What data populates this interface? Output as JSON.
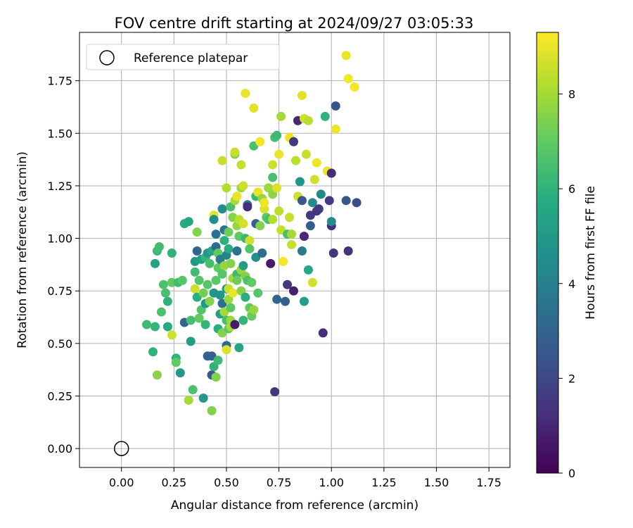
{
  "chart_data": {
    "type": "scatter",
    "title": "FOV centre drift starting at 2024/09/27 03:05:33",
    "xlabel": "Angular distance from reference (arcmin)",
    "ylabel": "Rotation from reference (arcmin)",
    "xlim": [
      -0.2,
      1.85
    ],
    "ylim": [
      -0.09,
      1.98
    ],
    "xticks": [
      "0.00",
      "0.25",
      "0.50",
      "0.75",
      "1.00",
      "1.25",
      "1.50",
      "1.75"
    ],
    "yticks": [
      "0.00",
      "0.25",
      "0.50",
      "0.75",
      "1.00",
      "1.25",
      "1.50",
      "1.75"
    ],
    "grid": true,
    "legend": {
      "placement": "top-left",
      "label": "Reference platepar"
    },
    "reference": {
      "x": 0.0,
      "y": 0.0
    },
    "colorbar": {
      "label": "Hours from first FF file",
      "range": [
        0,
        9.3
      ],
      "ticks": [
        "0",
        "2",
        "4",
        "6",
        "8"
      ],
      "colormap": [
        "#440154",
        "#472d7b",
        "#3b528b",
        "#2c728e",
        "#21918c",
        "#28ae80",
        "#5ec962",
        "#addc30",
        "#fde725"
      ]
    },
    "points": [
      [
        0.12,
        0.59,
        6.3
      ],
      [
        0.15,
        0.46,
        6.0
      ],
      [
        0.16,
        0.58,
        6.1
      ],
      [
        0.16,
        0.88,
        5.3
      ],
      [
        0.17,
        0.35,
        7.6
      ],
      [
        0.17,
        0.94,
        6.3
      ],
      [
        0.18,
        0.96,
        6.4
      ],
      [
        0.19,
        0.65,
        6.6
      ],
      [
        0.2,
        0.78,
        6.6
      ],
      [
        0.21,
        0.74,
        6.5
      ],
      [
        0.22,
        0.7,
        6.0
      ],
      [
        0.22,
        0.58,
        5.6
      ],
      [
        0.24,
        0.54,
        8.6
      ],
      [
        0.24,
        0.79,
        7.0
      ],
      [
        0.24,
        0.93,
        6.0
      ],
      [
        0.26,
        0.43,
        6.0
      ],
      [
        0.26,
        0.41,
        7.0
      ],
      [
        0.27,
        0.79,
        6.3
      ],
      [
        0.28,
        0.36,
        5.0
      ],
      [
        0.29,
        0.8,
        6.8
      ],
      [
        0.3,
        1.07,
        5.6
      ],
      [
        0.3,
        0.6,
        3.0
      ],
      [
        0.32,
        1.08,
        5.5
      ],
      [
        0.32,
        0.23,
        8.0
      ],
      [
        0.33,
        0.51,
        5.2
      ],
      [
        0.33,
        0.61,
        6.5
      ],
      [
        0.34,
        0.28,
        6.6
      ],
      [
        0.35,
        0.76,
        8.6
      ],
      [
        0.35,
        0.84,
        6.4
      ],
      [
        0.35,
        0.89,
        5.0
      ],
      [
        0.36,
        0.72,
        5.8
      ],
      [
        0.36,
        0.94,
        3.0
      ],
      [
        0.36,
        1.03,
        7.5
      ],
      [
        0.37,
        0.62,
        7.0
      ],
      [
        0.37,
        0.8,
        6.8
      ],
      [
        0.38,
        0.9,
        5.2
      ],
      [
        0.38,
        0.66,
        6.7
      ],
      [
        0.39,
        0.24,
        5.0
      ],
      [
        0.39,
        0.74,
        7.3
      ],
      [
        0.4,
        0.91,
        6.1
      ],
      [
        0.4,
        0.69,
        5.0
      ],
      [
        0.4,
        0.59,
        6.1
      ],
      [
        0.41,
        0.78,
        6.8
      ],
      [
        0.41,
        0.93,
        5.0
      ],
      [
        0.41,
        0.44,
        3.0
      ],
      [
        0.42,
        0.88,
        6.5
      ],
      [
        0.42,
        0.7,
        7.5
      ],
      [
        0.43,
        0.44,
        2.8
      ],
      [
        0.43,
        0.94,
        5.5
      ],
      [
        0.43,
        0.18,
        7.5
      ],
      [
        0.43,
        0.35,
        2.5
      ],
      [
        0.44,
        0.39,
        6.0
      ],
      [
        0.44,
        0.74,
        4.8
      ],
      [
        0.44,
        1.11,
        8.9
      ],
      [
        0.44,
        1.09,
        4.5
      ],
      [
        0.45,
        0.8,
        6.9
      ],
      [
        0.45,
        0.96,
        3.3
      ],
      [
        0.45,
        0.34,
        7.5
      ],
      [
        0.45,
        1.02,
        3.4
      ],
      [
        0.46,
        0.57,
        5.8
      ],
      [
        0.46,
        0.86,
        7.0
      ],
      [
        0.46,
        0.42,
        6.3
      ],
      [
        0.46,
        0.93,
        7.0
      ],
      [
        0.47,
        0.73,
        4.8
      ],
      [
        0.47,
        0.64,
        5.2
      ],
      [
        0.47,
        0.9,
        3.9
      ],
      [
        0.48,
        0.55,
        7.5
      ],
      [
        0.48,
        1.14,
        4.5
      ],
      [
        0.48,
        1.37,
        8.5
      ],
      [
        0.48,
        0.69,
        3.5
      ],
      [
        0.48,
        0.83,
        6.8
      ],
      [
        0.49,
        0.99,
        5.9
      ],
      [
        0.49,
        0.65,
        8.0
      ],
      [
        0.49,
        1.04,
        3.6
      ],
      [
        0.49,
        0.87,
        7.8
      ],
      [
        0.5,
        0.49,
        3.0
      ],
      [
        0.5,
        0.47,
        8.8
      ],
      [
        0.5,
        0.76,
        5.0
      ],
      [
        0.5,
        0.61,
        6.5
      ],
      [
        0.5,
        0.92,
        4.2
      ],
      [
        0.5,
        1.24,
        8.2
      ],
      [
        0.51,
        0.71,
        7.9
      ],
      [
        0.51,
        0.57,
        6.9
      ],
      [
        0.51,
        0.95,
        5.7
      ],
      [
        0.51,
        1.03,
        7.2
      ],
      [
        0.51,
        0.76,
        8.5
      ],
      [
        0.52,
        0.88,
        7.5
      ],
      [
        0.52,
        0.67,
        6.9
      ],
      [
        0.52,
        1.15,
        6.5
      ],
      [
        0.52,
        0.61,
        7.8
      ],
      [
        0.52,
        0.58,
        8.0
      ],
      [
        0.53,
        0.74,
        9.0
      ],
      [
        0.53,
        1.1,
        7.5
      ],
      [
        0.53,
        0.81,
        8.0
      ],
      [
        0.54,
        1.18,
        8.0
      ],
      [
        0.54,
        1.4,
        7.5
      ],
      [
        0.54,
        0.59,
        0.7
      ],
      [
        0.54,
        1.41,
        8.5
      ],
      [
        0.55,
        0.83,
        6.3
      ],
      [
        0.55,
        1.06,
        7.8
      ],
      [
        0.55,
        1.2,
        9.0
      ],
      [
        0.55,
        0.94,
        3.5
      ],
      [
        0.55,
        0.8,
        7.2
      ],
      [
        0.56,
        1.09,
        8.3
      ],
      [
        0.56,
        1.01,
        7.0
      ],
      [
        0.56,
        0.48,
        5.4
      ],
      [
        0.57,
        1.24,
        7.9
      ],
      [
        0.57,
        0.85,
        7.9
      ],
      [
        0.57,
        1.35,
        8.5
      ],
      [
        0.57,
        0.75,
        7.6
      ],
      [
        0.58,
        0.87,
        5.2
      ],
      [
        0.58,
        1.07,
        8.7
      ],
      [
        0.58,
        1.25,
        8.6
      ],
      [
        0.58,
        0.61,
        6.1
      ],
      [
        0.59,
        0.82,
        7.5
      ],
      [
        0.59,
        0.72,
        5.8
      ],
      [
        0.59,
        1.69,
        9.0
      ],
      [
        0.59,
        1.0,
        6.2
      ],
      [
        0.6,
        1.16,
        3.9
      ],
      [
        0.6,
        1.15,
        1.2
      ],
      [
        0.6,
        0.8,
        6.6
      ],
      [
        0.61,
        0.99,
        8.6
      ],
      [
        0.61,
        0.67,
        7.0
      ],
      [
        0.61,
        0.95,
        6.7
      ],
      [
        0.62,
        0.64,
        8.1
      ],
      [
        0.62,
        0.63,
        7.1
      ],
      [
        0.62,
        0.79,
        7.0
      ],
      [
        0.63,
        1.44,
        6.6
      ],
      [
        0.63,
        1.62,
        8.9
      ],
      [
        0.63,
        0.66,
        7.8
      ],
      [
        0.64,
        0.91,
        4.6
      ],
      [
        0.64,
        1.07,
        3.0
      ],
      [
        0.64,
        1.2,
        6.2
      ],
      [
        0.65,
        1.22,
        9.0
      ],
      [
        0.65,
        0.74,
        6.8
      ],
      [
        0.66,
        1.46,
        9.2
      ],
      [
        0.66,
        1.06,
        7.5
      ],
      [
        0.67,
        1.19,
        7.8
      ],
      [
        0.67,
        0.93,
        3.2
      ],
      [
        0.68,
        1.14,
        8.8
      ],
      [
        0.68,
        1.17,
        9.1
      ],
      [
        0.69,
        1.1,
        7.0
      ],
      [
        0.7,
        1.09,
        6.5
      ],
      [
        0.7,
        1.24,
        7.9
      ],
      [
        0.71,
        0.88,
        0.7
      ],
      [
        0.72,
        1.21,
        7.7
      ],
      [
        0.72,
        1.29,
        6.5
      ],
      [
        0.72,
        1.35,
        8.6
      ],
      [
        0.72,
        1.09,
        8.2
      ],
      [
        0.73,
        0.27,
        1.5
      ],
      [
        0.73,
        1.48,
        6.5
      ],
      [
        0.74,
        1.49,
        6.3
      ],
      [
        0.74,
        1.24,
        8.8
      ],
      [
        0.74,
        0.71,
        3.0
      ],
      [
        0.75,
        1.4,
        9.0
      ],
      [
        0.75,
        1.13,
        8.3
      ],
      [
        0.76,
        1.58,
        8.0
      ],
      [
        0.76,
        1.04,
        8.5
      ],
      [
        0.77,
        0.89,
        9.2
      ],
      [
        0.78,
        0.7,
        2.8
      ],
      [
        0.79,
        1.02,
        6.5
      ],
      [
        0.79,
        0.78,
        1.5
      ],
      [
        0.8,
        1.48,
        9.1
      ],
      [
        0.8,
        1.1,
        8.5
      ],
      [
        0.81,
        0.97,
        8.5
      ],
      [
        0.81,
        1.02,
        8.0
      ],
      [
        0.82,
        1.46,
        1.5
      ],
      [
        0.82,
        0.75,
        0.8
      ],
      [
        0.83,
        1.37,
        8.3
      ],
      [
        0.84,
        1.56,
        1.0
      ],
      [
        0.84,
        1.2,
        8.6
      ],
      [
        0.85,
        1.27,
        4.8
      ],
      [
        0.86,
        1.68,
        8.9
      ],
      [
        0.86,
        1.18,
        2.5
      ],
      [
        0.86,
        0.94,
        3.8
      ],
      [
        0.87,
        0.7,
        5.2
      ],
      [
        0.87,
        1.01,
        1.0
      ],
      [
        0.87,
        1.57,
        8.6
      ],
      [
        0.88,
        1.4,
        8.5
      ],
      [
        0.89,
        0.85,
        5.5
      ],
      [
        0.89,
        1.56,
        8.3
      ],
      [
        0.9,
        1.11,
        1.5
      ],
      [
        0.9,
        1.06,
        2.8
      ],
      [
        0.91,
        1.17,
        4.5
      ],
      [
        0.91,
        0.79,
        8.7
      ],
      [
        0.92,
        1.28,
        8.6
      ],
      [
        0.93,
        1.13,
        1.4
      ],
      [
        0.93,
        1.36,
        9.1
      ],
      [
        0.94,
        1.14,
        1.6
      ],
      [
        0.95,
        1.21,
        4.4
      ],
      [
        0.96,
        0.55,
        1.2
      ],
      [
        0.97,
        1.58,
        6.0
      ],
      [
        0.98,
        1.32,
        9.0
      ],
      [
        0.99,
        1.18,
        1.6
      ],
      [
        1.0,
        1.06,
        1.2
      ],
      [
        1.0,
        1.31,
        1.1
      ],
      [
        1.0,
        1.08,
        4.5
      ],
      [
        1.01,
        0.93,
        1.4
      ],
      [
        1.02,
        1.52,
        9.1
      ],
      [
        1.02,
        1.63,
        2.4
      ],
      [
        1.07,
        1.18,
        2.5
      ],
      [
        1.07,
        1.87,
        9.0
      ],
      [
        1.08,
        1.76,
        9.2
      ],
      [
        1.08,
        0.94,
        1.3
      ],
      [
        1.11,
        1.72,
        9.2
      ],
      [
        1.12,
        1.17,
        2.2
      ]
    ]
  }
}
